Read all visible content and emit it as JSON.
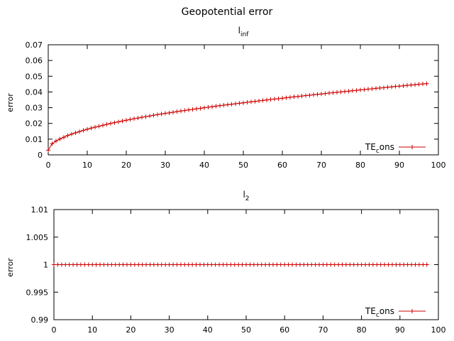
{
  "figure_title": "Geopotential error",
  "colors": {
    "series": "#cc0000",
    "axis": "#000000"
  },
  "chart_data": [
    {
      "type": "line",
      "title": "l",
      "title_subscript": "inf",
      "xlabel": "",
      "ylabel": "error",
      "xlim": [
        0,
        100
      ],
      "ylim": [
        0,
        0.07
      ],
      "xticks": [
        0,
        10,
        20,
        30,
        40,
        50,
        60,
        70,
        80,
        90,
        100
      ],
      "yticks": [
        0,
        0.01,
        0.02,
        0.03,
        0.04,
        0.05,
        0.06,
        0.07
      ],
      "xtick_labels": [
        "0",
        "10",
        "20",
        "30",
        "40",
        "50",
        "60",
        "70",
        "80",
        "90",
        "100"
      ],
      "ytick_labels": [
        "0",
        "0.01",
        "0.02",
        "0.03",
        "0.04",
        "0.05",
        "0.06",
        "0.07"
      ],
      "grid": false,
      "legend_position": "bottom-right",
      "series": [
        {
          "name": "TE",
          "name_subscript": "c",
          "name_suffix": "ons",
          "x": [
            0,
            1,
            2,
            3,
            4,
            5,
            6,
            7,
            8,
            9,
            10,
            11,
            12,
            13,
            14,
            15,
            16,
            17,
            18,
            19,
            20,
            21,
            22,
            23,
            24,
            25,
            26,
            27,
            28,
            29,
            30,
            31,
            32,
            33,
            34,
            35,
            36,
            37,
            38,
            39,
            40,
            41,
            42,
            43,
            44,
            45,
            46,
            47,
            48,
            49,
            50,
            51,
            52,
            53,
            54,
            55,
            56,
            57,
            58,
            59,
            60,
            61,
            62,
            63,
            64,
            65,
            66,
            67,
            68,
            69,
            70,
            71,
            72,
            73,
            74,
            75,
            76,
            77,
            78,
            79,
            80,
            81,
            82,
            83,
            84,
            85,
            86,
            87,
            88,
            89,
            90,
            91,
            92,
            93,
            94,
            95,
            96,
            97
          ],
          "values": [
            0.003,
            0.0071,
            0.0088,
            0.0101,
            0.0112,
            0.0123,
            0.0132,
            0.014,
            0.0148,
            0.0156,
            0.0163,
            0.017,
            0.0176,
            0.0182,
            0.0188,
            0.0194,
            0.02,
            0.0205,
            0.021,
            0.0215,
            0.022,
            0.0225,
            0.023,
            0.0234,
            0.0239,
            0.0243,
            0.0247,
            0.0252,
            0.0256,
            0.026,
            0.0264,
            0.0267,
            0.0271,
            0.0275,
            0.0279,
            0.0282,
            0.0286,
            0.0289,
            0.0293,
            0.0296,
            0.03,
            0.0303,
            0.0306,
            0.031,
            0.0313,
            0.0316,
            0.0319,
            0.0322,
            0.0325,
            0.0328,
            0.0331,
            0.0334,
            0.0337,
            0.034,
            0.0343,
            0.0346,
            0.0349,
            0.0352,
            0.0355,
            0.0357,
            0.036,
            0.0363,
            0.0366,
            0.0369,
            0.0371,
            0.0374,
            0.0377,
            0.0379,
            0.0382,
            0.0385,
            0.0387,
            0.039,
            0.0393,
            0.0395,
            0.0398,
            0.04,
            0.0403,
            0.0405,
            0.0408,
            0.041,
            0.0413,
            0.0415,
            0.0418,
            0.042,
            0.0423,
            0.0425,
            0.0427,
            0.043,
            0.0432,
            0.0435,
            0.0437,
            0.0439,
            0.0442,
            0.0444,
            0.0446,
            0.0449,
            0.0451,
            0.0453
          ]
        }
      ]
    },
    {
      "type": "line",
      "title": "l",
      "title_subscript": "2",
      "xlabel": "",
      "ylabel": "error",
      "xlim": [
        0,
        100
      ],
      "ylim": [
        0.99,
        1.01
      ],
      "xticks": [
        0,
        10,
        20,
        30,
        40,
        50,
        60,
        70,
        80,
        90,
        100
      ],
      "yticks": [
        0.99,
        0.995,
        1,
        1.005,
        1.01
      ],
      "xtick_labels": [
        "0",
        "10",
        "20",
        "30",
        "40",
        "50",
        "60",
        "70",
        "80",
        "90",
        "100"
      ],
      "ytick_labels": [
        "0.99",
        "0.995",
        "1",
        "1.005",
        "1.01"
      ],
      "grid": false,
      "legend_position": "bottom-right",
      "series": [
        {
          "name": "TE",
          "name_subscript": "c",
          "name_suffix": "ons",
          "x": [
            0,
            1,
            2,
            3,
            4,
            5,
            6,
            7,
            8,
            9,
            10,
            11,
            12,
            13,
            14,
            15,
            16,
            17,
            18,
            19,
            20,
            21,
            22,
            23,
            24,
            25,
            26,
            27,
            28,
            29,
            30,
            31,
            32,
            33,
            34,
            35,
            36,
            37,
            38,
            39,
            40,
            41,
            42,
            43,
            44,
            45,
            46,
            47,
            48,
            49,
            50,
            51,
            52,
            53,
            54,
            55,
            56,
            57,
            58,
            59,
            60,
            61,
            62,
            63,
            64,
            65,
            66,
            67,
            68,
            69,
            70,
            71,
            72,
            73,
            74,
            75,
            76,
            77,
            78,
            79,
            80,
            81,
            82,
            83,
            84,
            85,
            86,
            87,
            88,
            89,
            90,
            91,
            92,
            93,
            94,
            95,
            96,
            97
          ],
          "values": [
            1,
            1,
            1,
            1,
            1,
            1,
            1,
            1,
            1,
            1,
            1,
            1,
            1,
            1,
            1,
            1,
            1,
            1,
            1,
            1,
            1,
            1,
            1,
            1,
            1,
            1,
            1,
            1,
            1,
            1,
            1,
            1,
            1,
            1,
            1,
            1,
            1,
            1,
            1,
            1,
            1,
            1,
            1,
            1,
            1,
            1,
            1,
            1,
            1,
            1,
            1,
            1,
            1,
            1,
            1,
            1,
            1,
            1,
            1,
            1,
            1,
            1,
            1,
            1,
            1,
            1,
            1,
            1,
            1,
            1,
            1,
            1,
            1,
            1,
            1,
            1,
            1,
            1,
            1,
            1,
            1,
            1,
            1,
            1,
            1,
            1,
            1,
            1,
            1,
            1,
            1,
            1,
            1,
            1,
            1,
            1,
            1,
            1
          ]
        }
      ]
    }
  ]
}
